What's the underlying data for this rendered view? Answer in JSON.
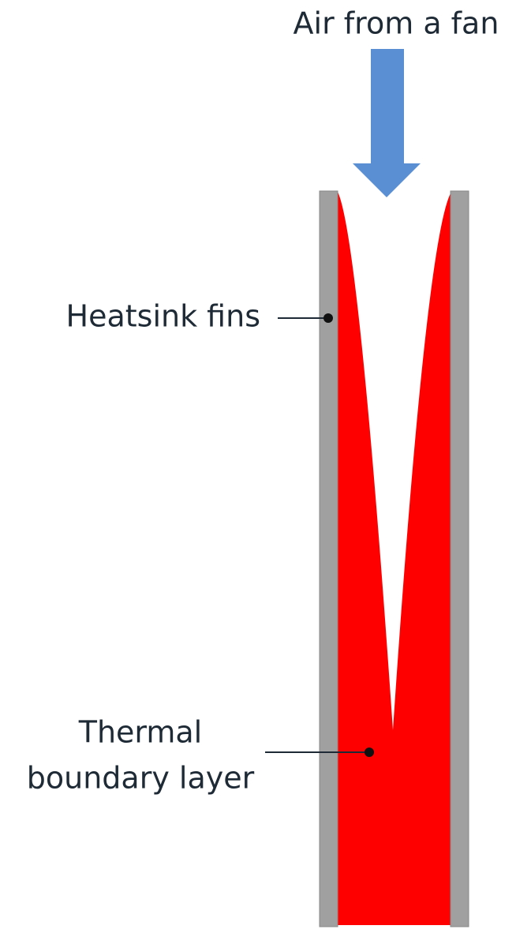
{
  "labels": {
    "air": "Air from a fan",
    "fins": "Heatsink fins",
    "layer_line1": "Thermal",
    "layer_line2": "boundary layer"
  }
}
